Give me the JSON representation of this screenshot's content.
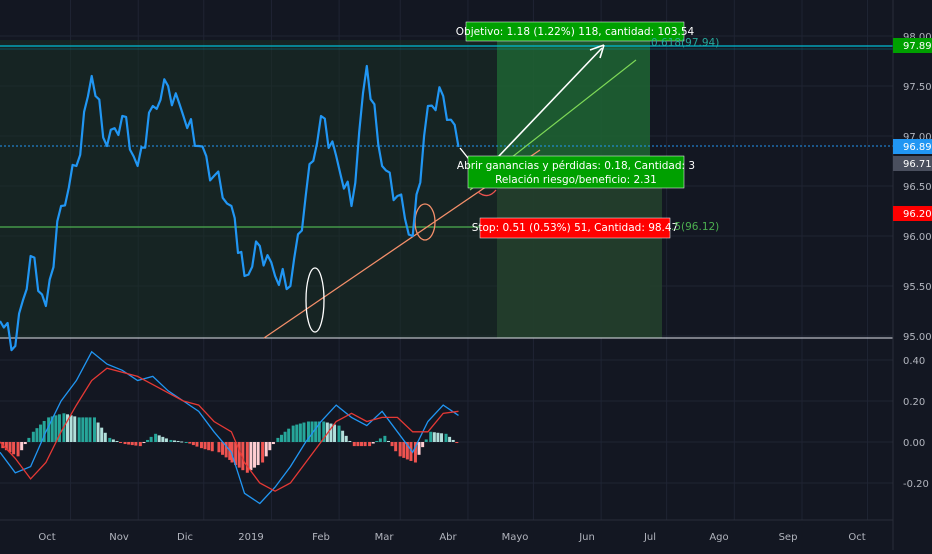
{
  "colors": {
    "background": "#131722",
    "grid": "#1f2433",
    "axis_text": "#b2b5be",
    "price_line": "#2196f3",
    "trend_line": "#f48f6a",
    "target_line": "#4caf50",
    "profit_zone": "#1d5a2c",
    "loss_zone": "#1b2b20",
    "macd": "#2196f3",
    "signal": "#e53935",
    "hist_pos_strong": "#26a69a",
    "hist_pos_weak": "#b2dfdb",
    "hist_neg_strong": "#ef5350",
    "hist_neg_weak": "#ffcdd2",
    "label_green": "#00a000",
    "label_red": "#ff0000",
    "cyan_line": "#00bcd4"
  },
  "price_axis": {
    "ticks": [
      "98.00",
      "97.50",
      "97.00",
      "96.50",
      "96.00",
      "95.50",
      "95.00"
    ],
    "badges": [
      {
        "text": "97.89",
        "value": 97.89,
        "color": "#00a000"
      },
      {
        "text": "96.89",
        "value": 96.89,
        "color": "#2196f3"
      },
      {
        "text": "96.71",
        "value": 96.71,
        "color": "#4a4f5e"
      },
      {
        "text": "96.20",
        "value": 96.2,
        "color": "#ff0000"
      }
    ]
  },
  "macd_axis": {
    "ticks": [
      "0.40",
      "0.20",
      "0.00",
      "-0.20"
    ]
  },
  "time_axis": {
    "labels": [
      "Oct",
      "Nov",
      "Dic",
      "2019",
      "Feb",
      "Mar",
      "Abr",
      "Mayo",
      "Jun",
      "Jul",
      "Ago",
      "Sep",
      "Oct"
    ]
  },
  "annotations": {
    "objective": "Objetivo: 1.18 (1.22%) 118, cantidad: 103.54",
    "open_pl": "Abrir ganancias y pérdidas: 0.18, Cantidad: 3",
    "risk_reward": "Relación riesgo/beneficio: 2.31",
    "stop": "Stop: 0.51 (0.53%) 51, Cantidad: 98.47",
    "fib_upper": "0.618(97.94)",
    "fib_lower": ".5(96.12)"
  },
  "chart_data": [
    {
      "type": "line",
      "name": "price",
      "ylim": [
        95.0,
        98.1
      ],
      "x_range": [
        "2018-09-17",
        "2019-10-31"
      ],
      "x": [
        "2018-09-17",
        "2018-09-24",
        "2018-10-01",
        "2018-10-08",
        "2018-10-15",
        "2018-10-22",
        "2018-10-29",
        "2018-11-05",
        "2018-11-12",
        "2018-11-19",
        "2018-11-26",
        "2018-12-03",
        "2018-12-10",
        "2018-12-17",
        "2018-12-24",
        "2019-01-01",
        "2019-01-07",
        "2019-01-14",
        "2019-01-21",
        "2019-01-28",
        "2019-02-04",
        "2019-02-11",
        "2019-02-18",
        "2019-02-25",
        "2019-03-04",
        "2019-03-11",
        "2019-03-18",
        "2019-03-25",
        "2019-04-01",
        "2019-04-08",
        "2019-04-15"
      ],
      "y": [
        95.15,
        94.9,
        95.8,
        95.3,
        96.3,
        96.7,
        97.6,
        96.9,
        97.2,
        96.7,
        97.3,
        97.5,
        97.2,
        96.9,
        96.6,
        96.3,
        95.6,
        95.9,
        95.6,
        95.5,
        96.4,
        97.2,
        96.8,
        96.3,
        97.7,
        96.7,
        96.4,
        96.0,
        97.3,
        97.4,
        96.89
      ],
      "annotation_lines": {
        "target": 97.89,
        "entry": 96.71,
        "stop": 96.2,
        "trend_start": [
          "2019-01-22",
          94.95
        ],
        "trend_end": [
          "2019-06-19",
          97.76
        ]
      }
    },
    {
      "type": "bar",
      "name": "macd",
      "ylim": [
        -0.35,
        0.45
      ],
      "x": [
        "2018-09-17",
        "2018-09-24",
        "2018-10-01",
        "2018-10-08",
        "2018-10-15",
        "2018-10-22",
        "2018-10-29",
        "2018-11-05",
        "2018-11-12",
        "2018-11-19",
        "2018-11-26",
        "2018-12-03",
        "2018-12-10",
        "2018-12-17",
        "2018-12-24",
        "2019-01-01",
        "2019-01-07",
        "2019-01-14",
        "2019-01-21",
        "2019-01-28",
        "2019-02-04",
        "2019-02-11",
        "2019-02-18",
        "2019-02-25",
        "2019-03-04",
        "2019-03-11",
        "2019-03-18",
        "2019-03-25",
        "2019-04-01",
        "2019-04-08",
        "2019-04-15"
      ],
      "series": [
        {
          "values": [
            -0.05,
            -0.15,
            -0.12,
            0.05,
            0.2,
            0.3,
            0.44,
            0.38,
            0.35,
            0.3,
            0.32,
            0.25,
            0.2,
            0.15,
            0.05,
            -0.05,
            -0.25,
            -0.3,
            -0.22,
            -0.12,
            0.0,
            0.1,
            0.18,
            0.12,
            0.08,
            0.15,
            0.05,
            -0.05,
            0.1,
            0.18,
            0.13
          ]
        },
        {
          "values": [
            0.0,
            -0.08,
            -0.18,
            -0.1,
            0.05,
            0.18,
            0.3,
            0.36,
            0.34,
            0.32,
            0.28,
            0.24,
            0.2,
            0.18,
            0.1,
            0.05,
            -0.1,
            -0.2,
            -0.24,
            -0.2,
            -0.1,
            0.0,
            0.1,
            0.14,
            0.1,
            0.12,
            0.12,
            0.05,
            0.05,
            0.14,
            0.15
          ]
        },
        {
          "values": [
            -0.03,
            -0.07,
            0.05,
            0.12,
            0.14,
            0.12,
            0.12,
            0.02,
            -0.01,
            -0.02,
            0.04,
            0.01,
            0.0,
            -0.03,
            -0.05,
            -0.1,
            -0.15,
            -0.1,
            0.02,
            0.08,
            0.1,
            0.1,
            0.08,
            -0.02,
            -0.02,
            0.03,
            -0.07,
            -0.1,
            0.05,
            0.04,
            -0.02
          ]
        }
      ]
    }
  ]
}
